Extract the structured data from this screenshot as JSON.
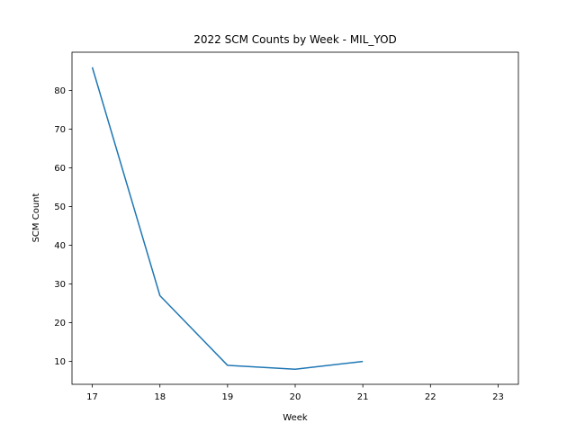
{
  "chart_data": {
    "type": "line",
    "title": "2022 SCM Counts by Week - MIL_YOD",
    "xlabel": "Week",
    "ylabel": "SCM Count",
    "x": [
      17,
      18,
      19,
      20,
      21
    ],
    "series": [
      {
        "values": [
          86,
          27,
          9,
          8,
          10
        ],
        "color": "#1f77b4"
      }
    ],
    "xlim": [
      16.7,
      23.3
    ],
    "ylim": [
      4.1,
      89.9
    ],
    "xticks": [
      17,
      18,
      19,
      20,
      21,
      22,
      23
    ],
    "yticks": [
      10,
      20,
      30,
      40,
      50,
      60,
      70,
      80
    ],
    "grid": false,
    "legend": "none"
  }
}
